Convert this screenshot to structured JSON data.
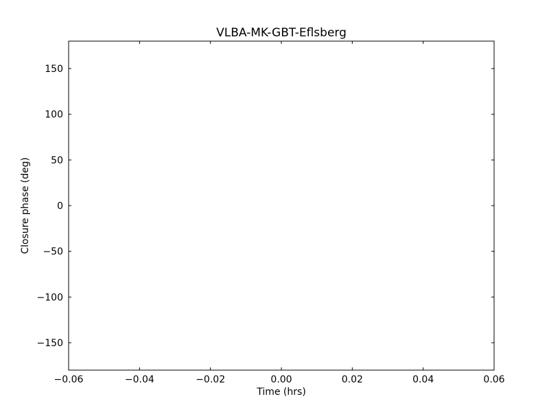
{
  "chart_data": {
    "type": "scatter",
    "title": "VLBA-MK-GBT-Eflsberg",
    "xlabel": "Time (hrs)",
    "ylabel": "Closure phase (deg)",
    "xlim": [
      -0.06,
      0.06
    ],
    "ylim": [
      -180,
      180
    ],
    "xticks": [
      -0.06,
      -0.04,
      -0.02,
      0.0,
      0.02,
      0.04,
      0.06
    ],
    "xtick_labels": [
      "−0.06",
      "−0.04",
      "−0.02",
      "0.00",
      "0.02",
      "0.04",
      "0.06"
    ],
    "yticks": [
      -150,
      -100,
      -50,
      0,
      50,
      100,
      150
    ],
    "ytick_labels": [
      "−150",
      "−100",
      "−50",
      "0",
      "50",
      "100",
      "150"
    ],
    "grid": false,
    "series": []
  }
}
